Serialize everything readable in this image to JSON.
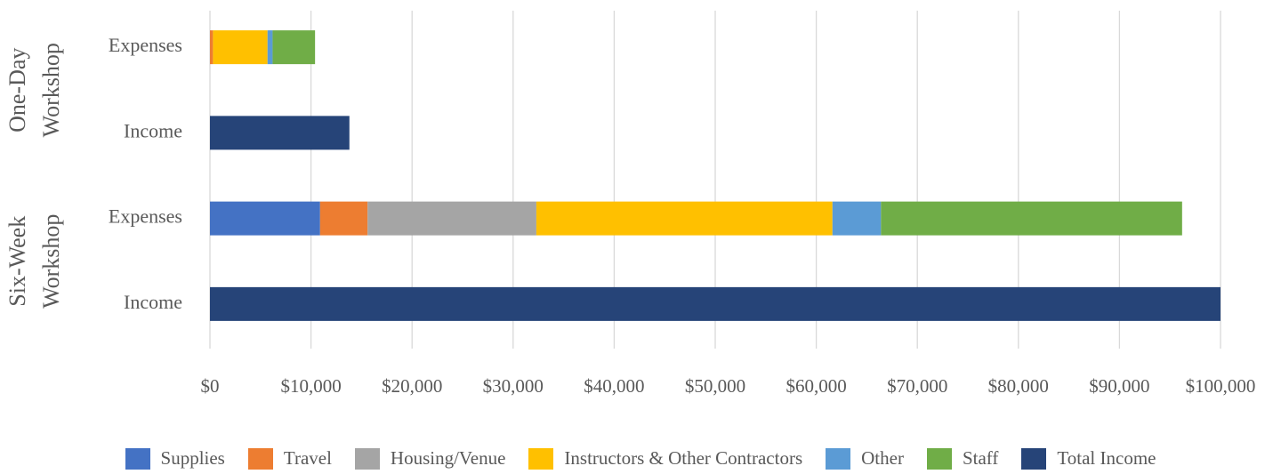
{
  "chart_data": {
    "type": "stacked-barh",
    "categories": [
      "Expenses",
      "Income",
      "Expenses",
      "Income"
    ],
    "group_labels": [
      [
        "One-Day",
        "Workshop"
      ],
      [
        "Six-Week",
        "Workshop"
      ]
    ],
    "series": [
      {
        "name": "Supplies",
        "color": "#4472c4",
        "values": [
          0,
          null,
          10900,
          null
        ]
      },
      {
        "name": "Travel",
        "color": "#ed7d31",
        "values": [
          300,
          null,
          4700,
          null
        ]
      },
      {
        "name": "Housing/Venue",
        "color": "#a5a5a5",
        "values": [
          0,
          null,
          16700,
          null
        ]
      },
      {
        "name": "Instructors & Other Contractors",
        "color": "#ffc000",
        "values": [
          5400,
          null,
          29300,
          null
        ]
      },
      {
        "name": "Other",
        "color": "#5b9bd5",
        "values": [
          500,
          null,
          4800,
          null
        ]
      },
      {
        "name": "Staff",
        "color": "#70ad47",
        "values": [
          4200,
          null,
          29800,
          null
        ]
      },
      {
        "name": "Total Income",
        "color": "#264478",
        "values": [
          null,
          13800,
          null,
          100000
        ]
      }
    ],
    "xlim": [
      0,
      100000
    ],
    "xticks": [
      {
        "value": 0,
        "label": "$0"
      },
      {
        "value": 10000,
        "label": "$10,000"
      },
      {
        "value": 20000,
        "label": "$20,000"
      },
      {
        "value": 30000,
        "label": "$30,000"
      },
      {
        "value": 40000,
        "label": "$40,000"
      },
      {
        "value": 50000,
        "label": "$50,000"
      },
      {
        "value": 60000,
        "label": "$60,000"
      },
      {
        "value": 70000,
        "label": "$70,000"
      },
      {
        "value": 80000,
        "label": "$80,000"
      },
      {
        "value": 90000,
        "label": "$90,000"
      },
      {
        "value": 100000,
        "label": "$100,000"
      }
    ],
    "grid": true,
    "legend": "bottom"
  }
}
